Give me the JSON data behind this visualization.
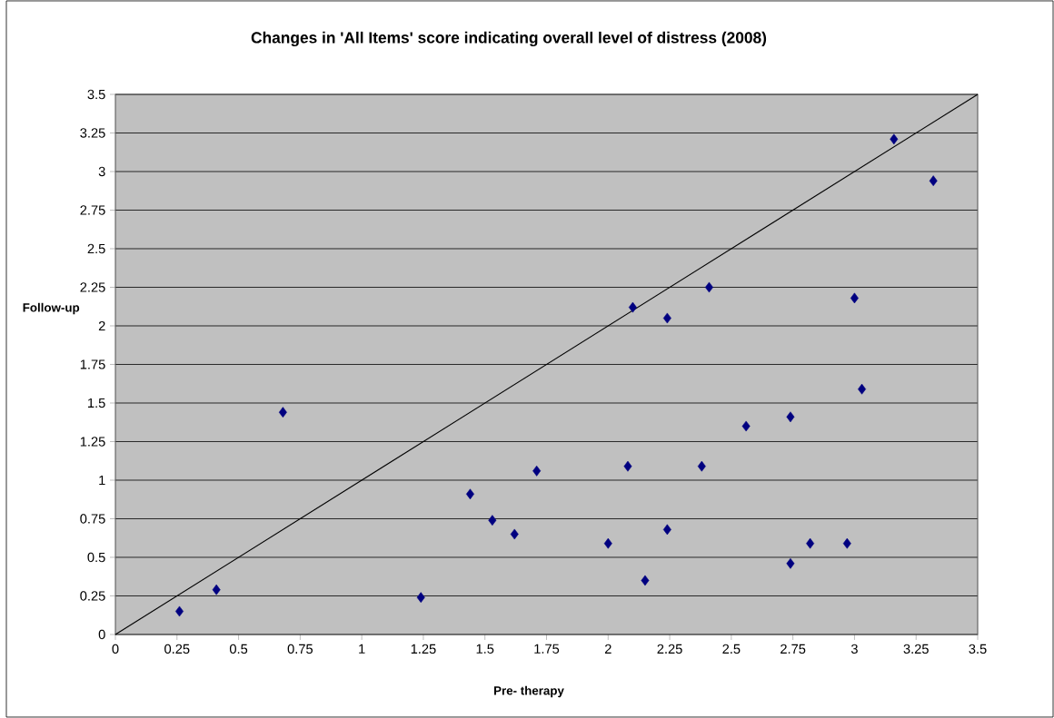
{
  "chart_data": {
    "type": "scatter",
    "title": "Changes in 'All Items' score indicating overall level of distress (2008)",
    "xlabel": "Pre- therapy",
    "ylabel": "Follow-up",
    "xlim": [
      0,
      3.5
    ],
    "ylim": [
      0,
      3.5
    ],
    "xticks": [
      0,
      0.25,
      0.5,
      0.75,
      1,
      1.25,
      1.5,
      1.75,
      2,
      2.25,
      2.5,
      2.75,
      3,
      3.25,
      3.5
    ],
    "yticks": [
      0,
      0.25,
      0.5,
      0.75,
      1,
      1.25,
      1.5,
      1.75,
      2,
      2.25,
      2.5,
      2.75,
      3,
      3.25,
      3.5
    ],
    "grid": "y",
    "marker": "diamond",
    "series": [
      {
        "color": "#000080",
        "x": [
          0.26,
          0.41,
          0.68,
          1.24,
          1.44,
          1.53,
          1.62,
          1.71,
          2.0,
          2.08,
          2.1,
          2.15,
          2.24,
          2.24,
          2.38,
          2.41,
          2.56,
          2.74,
          2.74,
          2.82,
          2.97,
          3.0,
          3.03,
          3.16,
          3.32
        ],
        "values": [
          0.15,
          0.29,
          1.44,
          0.24,
          0.91,
          0.74,
          0.65,
          1.06,
          0.59,
          1.09,
          2.12,
          0.35,
          2.05,
          0.68,
          1.09,
          2.25,
          1.35,
          1.41,
          0.46,
          0.59,
          0.59,
          2.18,
          1.59,
          3.21,
          2.94
        ]
      },
      {
        "type": "line",
        "marker": "none",
        "color": "#000000",
        "x": [
          0,
          3.5
        ],
        "values": [
          0,
          3.5
        ]
      }
    ]
  }
}
